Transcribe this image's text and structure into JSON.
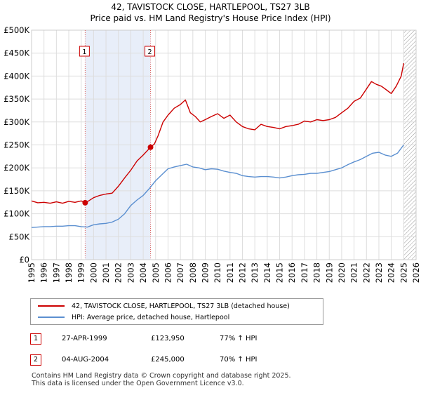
{
  "title_line1": "42, TAVISTOCK CLOSE, HARTLEPOOL, TS27 3LB",
  "title_line2": "Price paid vs. HM Land Registry's House Price Index (HPI)",
  "chart_data": {
    "type": "line",
    "title": "42, TAVISTOCK CLOSE, HARTLEPOOL, TS27 3LB — Price paid vs. HM Land Registry's House Price Index (HPI)",
    "xlim": [
      1995,
      2026
    ],
    "ylim": [
      0,
      500000
    ],
    "x_ticks": [
      "1995",
      "1996",
      "1997",
      "1998",
      "1999",
      "2000",
      "2001",
      "2002",
      "2003",
      "2004",
      "2005",
      "2006",
      "2007",
      "2008",
      "2009",
      "2010",
      "2011",
      "2012",
      "2013",
      "2014",
      "2015",
      "2016",
      "2017",
      "2018",
      "2019",
      "2020",
      "2021",
      "2022",
      "2023",
      "2024",
      "2025",
      "2026"
    ],
    "y_ticks": [
      {
        "value": 0,
        "label": "£0"
      },
      {
        "value": 50000,
        "label": "£50K"
      },
      {
        "value": 100000,
        "label": "£100K"
      },
      {
        "value": 150000,
        "label": "£150K"
      },
      {
        "value": 200000,
        "label": "£200K"
      },
      {
        "value": 250000,
        "label": "£250K"
      },
      {
        "value": 300000,
        "label": "£300K"
      },
      {
        "value": 350000,
        "label": "£350K"
      },
      {
        "value": 400000,
        "label": "£400K"
      },
      {
        "value": 450000,
        "label": "£450K"
      },
      {
        "value": 500000,
        "label": "£500K"
      }
    ],
    "shaded_period": [
      1999.32,
      2004.59
    ],
    "hatched_after": 2025.0,
    "series": [
      {
        "name": "42, TAVISTOCK CLOSE, HARTLEPOOL, TS27 3LB (detached house)",
        "color": "#cc0000",
        "x": [
          1995.0,
          1995.5,
          1996.0,
          1996.5,
          1997.0,
          1997.5,
          1998.0,
          1998.5,
          1999.0,
          1999.32,
          1999.6,
          2000.0,
          2000.5,
          2001.0,
          2001.5,
          2002.0,
          2002.5,
          2003.0,
          2003.5,
          2004.0,
          2004.59,
          2004.9,
          2005.2,
          2005.6,
          2006.0,
          2006.5,
          2007.0,
          2007.4,
          2007.8,
          2008.2,
          2008.6,
          2009.0,
          2009.5,
          2010.0,
          2010.5,
          2011.0,
          2011.5,
          2012.0,
          2012.5,
          2013.0,
          2013.5,
          2014.0,
          2014.5,
          2015.0,
          2015.5,
          2016.0,
          2016.5,
          2017.0,
          2017.5,
          2018.0,
          2018.5,
          2019.0,
          2019.5,
          2020.0,
          2020.5,
          2021.0,
          2021.5,
          2022.0,
          2022.4,
          2022.8,
          2023.2,
          2023.6,
          2024.0,
          2024.4,
          2024.8,
          2025.0
        ],
        "values": [
          128000,
          124000,
          125000,
          123000,
          126000,
          123000,
          127000,
          125000,
          128000,
          123950,
          128000,
          135000,
          140000,
          143000,
          145000,
          160000,
          178000,
          195000,
          215000,
          228000,
          245000,
          252000,
          270000,
          300000,
          315000,
          330000,
          338000,
          348000,
          320000,
          312000,
          300000,
          305000,
          312000,
          318000,
          308000,
          315000,
          300000,
          290000,
          285000,
          283000,
          295000,
          290000,
          288000,
          285000,
          290000,
          292000,
          295000,
          302000,
          300000,
          305000,
          303000,
          305000,
          310000,
          320000,
          330000,
          345000,
          352000,
          372000,
          388000,
          382000,
          378000,
          370000,
          362000,
          378000,
          400000,
          428000
        ]
      },
      {
        "name": "HPI: Average price, detached house, Hartlepool",
        "color": "#5b8fd0",
        "x": [
          1995.0,
          1995.5,
          1996.0,
          1996.5,
          1997.0,
          1997.5,
          1998.0,
          1998.5,
          1999.0,
          1999.5,
          2000.0,
          2000.5,
          2001.0,
          2001.5,
          2002.0,
          2002.5,
          2003.0,
          2003.5,
          2004.0,
          2004.5,
          2005.0,
          2005.5,
          2006.0,
          2006.5,
          2007.0,
          2007.5,
          2008.0,
          2008.5,
          2009.0,
          2009.5,
          2010.0,
          2010.5,
          2011.0,
          2011.5,
          2012.0,
          2012.5,
          2013.0,
          2013.5,
          2014.0,
          2014.5,
          2015.0,
          2015.5,
          2016.0,
          2016.5,
          2017.0,
          2017.5,
          2018.0,
          2018.5,
          2019.0,
          2019.5,
          2020.0,
          2020.5,
          2021.0,
          2021.5,
          2022.0,
          2022.5,
          2023.0,
          2023.5,
          2024.0,
          2024.5,
          2025.0
        ],
        "values": [
          70000,
          71000,
          72000,
          72000,
          73000,
          73000,
          74000,
          74000,
          72000,
          71000,
          76000,
          78000,
          79000,
          82000,
          88000,
          100000,
          118000,
          130000,
          140000,
          155000,
          172000,
          185000,
          198000,
          202000,
          205000,
          208000,
          202000,
          200000,
          196000,
          198000,
          197000,
          193000,
          190000,
          188000,
          183000,
          181000,
          180000,
          181000,
          181000,
          180000,
          178000,
          180000,
          183000,
          185000,
          186000,
          188000,
          188000,
          190000,
          192000,
          196000,
          200000,
          207000,
          213000,
          218000,
          225000,
          232000,
          234000,
          228000,
          225000,
          232000,
          250000
        ]
      }
    ],
    "sale_markers": [
      {
        "label": "1",
        "date": "27-APR-1999",
        "x": 1999.32,
        "value": 123950
      },
      {
        "label": "2",
        "date": "04-AUG-2004",
        "x": 2004.59,
        "value": 245000
      }
    ]
  },
  "legend": {
    "property": "42, TAVISTOCK CLOSE, HARTLEPOOL, TS27 3LB (detached house)",
    "hpi": "HPI: Average price, detached house, Hartlepool"
  },
  "sales": [
    {
      "num": "1",
      "date": "27-APR-1999",
      "price": "£123,950",
      "hpi": "77% ↑ HPI"
    },
    {
      "num": "2",
      "date": "04-AUG-2004",
      "price": "£245,000",
      "hpi": "70% ↑ HPI"
    }
  ],
  "footer": {
    "line1": "Contains HM Land Registry data © Crown copyright and database right 2025.",
    "line2": "This data is licensed under the Open Government Licence v3.0."
  }
}
